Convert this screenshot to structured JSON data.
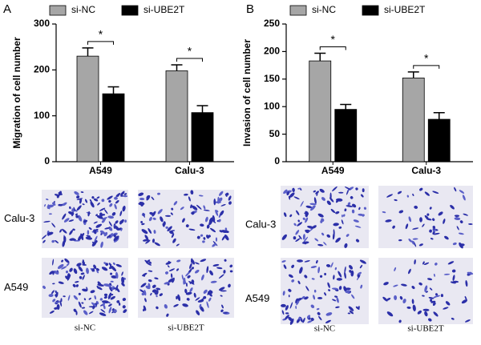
{
  "chart_data": [
    {
      "type": "bar",
      "panel": "A",
      "ylabel": "Migration of cell number",
      "categories": [
        "A549",
        "Calu-3"
      ],
      "series": [
        {
          "name": "si-NC",
          "color": "#a6a6a6",
          "values": [
            230,
            198
          ],
          "errors": [
            18,
            13
          ]
        },
        {
          "name": "si-UBE2T",
          "color": "#000000",
          "values": [
            148,
            107
          ],
          "errors": [
            15,
            15
          ]
        }
      ],
      "annotations": [
        "*",
        "*"
      ],
      "ylim": [
        0,
        300
      ],
      "yticks": [
        0,
        100,
        200,
        300
      ]
    },
    {
      "type": "bar",
      "panel": "B",
      "ylabel": "Invasion of cell number",
      "categories": [
        "A549",
        "Calu-3"
      ],
      "series": [
        {
          "name": "si-NC",
          "color": "#a6a6a6",
          "values": [
            183,
            152
          ],
          "errors": [
            14,
            11
          ]
        },
        {
          "name": "si-UBE2T",
          "color": "#000000",
          "values": [
            95,
            77
          ],
          "errors": [
            9,
            12
          ]
        }
      ],
      "annotations": [
        "*",
        "*"
      ],
      "ylim": [
        0,
        250
      ],
      "yticks": [
        0,
        50,
        100,
        150,
        200,
        250
      ]
    }
  ],
  "image_panels": [
    {
      "row_labels": [
        "Calu-3",
        "A549"
      ],
      "col_labels": [
        "si-NC",
        "si-UBE2T"
      ]
    },
    {
      "row_labels": [
        "Calu-3",
        "A549"
      ],
      "col_labels": [
        "si-NC",
        "si-UBE2T"
      ]
    }
  ]
}
